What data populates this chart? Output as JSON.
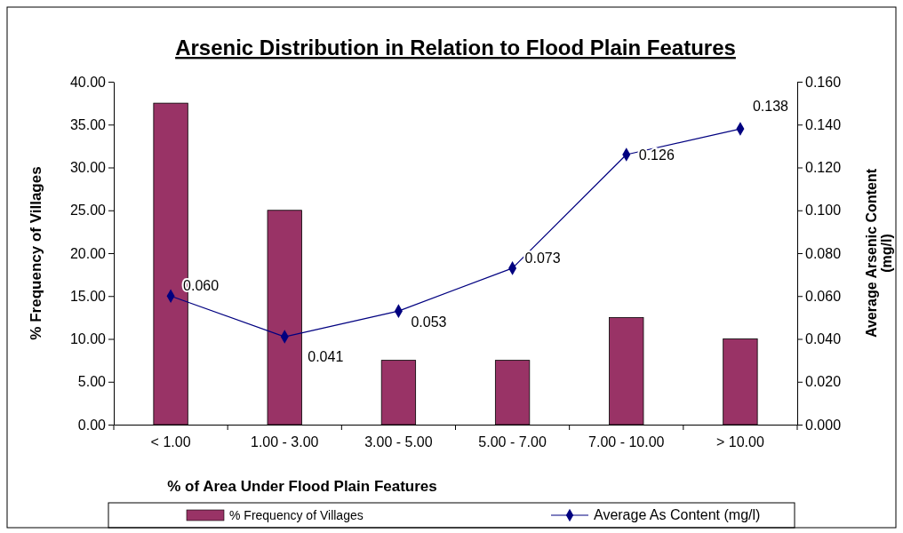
{
  "chart_data": {
    "type": "bar",
    "title": "Arsenic Distribution in Relation to Flood Plain Features",
    "xlabel": "% of Area Under Flood Plain Features",
    "ylabel": "% Frequency of Villages",
    "y2label": "Average Arsenic Content (mg/l)",
    "categories": [
      "< 1.00",
      "1.00 - 3.00",
      "3.00 - 5.00",
      "5.00 - 7.00",
      "7.00 - 10.00",
      "> 10.00"
    ],
    "series": [
      {
        "name": "% Frequency of  Villages",
        "color": "#993366",
        "values": [
          37.5,
          25.0,
          7.5,
          7.5,
          12.5,
          10.0
        ]
      },
      {
        "name": "Average As Content (mg/l)",
        "type": "line",
        "axis": "y2",
        "color": "#000080",
        "marker": "diamond",
        "values": [
          0.06,
          0.041,
          0.053,
          0.073,
          0.126,
          0.138
        ],
        "value_labels": [
          "0.060",
          "0.041",
          "0.053",
          "0.073",
          "0.126",
          "0.138"
        ]
      }
    ],
    "ylim": [
      0,
      40
    ],
    "yticks": [
      {
        "value": 0,
        "label": "0.00"
      },
      {
        "value": 5,
        "label": "5.00"
      },
      {
        "value": 10,
        "label": "10.00"
      },
      {
        "value": 15,
        "label": "15.00"
      },
      {
        "value": 20,
        "label": "20.00"
      },
      {
        "value": 25,
        "label": "25.00"
      },
      {
        "value": 30,
        "label": "30.00"
      },
      {
        "value": 35,
        "label": "35.00"
      },
      {
        "value": 40,
        "label": "40.00"
      }
    ],
    "y2lim": [
      0,
      0.16
    ],
    "y2ticks": [
      {
        "value": 0,
        "label": "0.000"
      },
      {
        "value": 0.02,
        "label": "0.020"
      },
      {
        "value": 0.04,
        "label": "0.040"
      },
      {
        "value": 0.06,
        "label": "0.060"
      },
      {
        "value": 0.08,
        "label": "0.080"
      },
      {
        "value": 0.1,
        "label": "0.100"
      },
      {
        "value": 0.12,
        "label": "0.120"
      },
      {
        "value": 0.14,
        "label": "0.140"
      },
      {
        "value": 0.16,
        "label": "0.160"
      }
    ],
    "legend": "bottom",
    "grid": false
  }
}
